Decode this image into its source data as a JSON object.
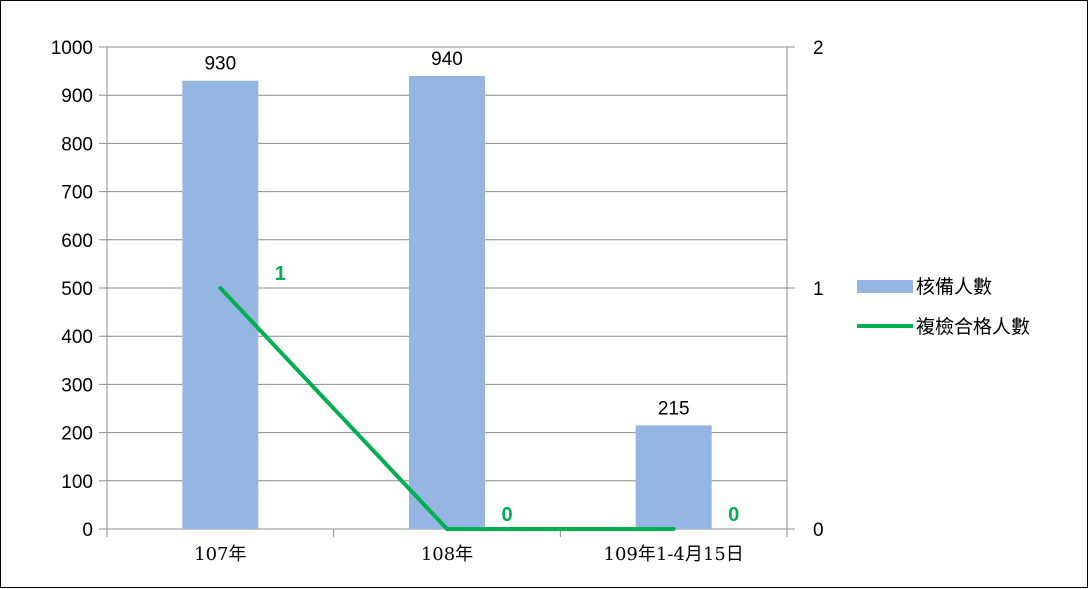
{
  "chart_data": {
    "type": "bar",
    "categories": [
      "107年",
      "108年",
      "109年1-4月15日"
    ],
    "y_left": {
      "min": 0,
      "max": 1000,
      "step": 100
    },
    "y_right": {
      "min": 0,
      "max": 2,
      "step": 1
    },
    "gridlines": true,
    "legend_position": "right",
    "series": [
      {
        "name": "核備人數",
        "type": "bar",
        "axis": "left",
        "color": "#95b6e3",
        "values": [
          930,
          940,
          215
        ],
        "labels": [
          "930",
          "940",
          "215"
        ]
      },
      {
        "name": "複檢合格人數",
        "type": "line",
        "axis": "right",
        "color": "#00b050",
        "values": [
          1,
          0,
          0
        ],
        "labels": [
          "1",
          "0",
          "0"
        ]
      }
    ]
  }
}
